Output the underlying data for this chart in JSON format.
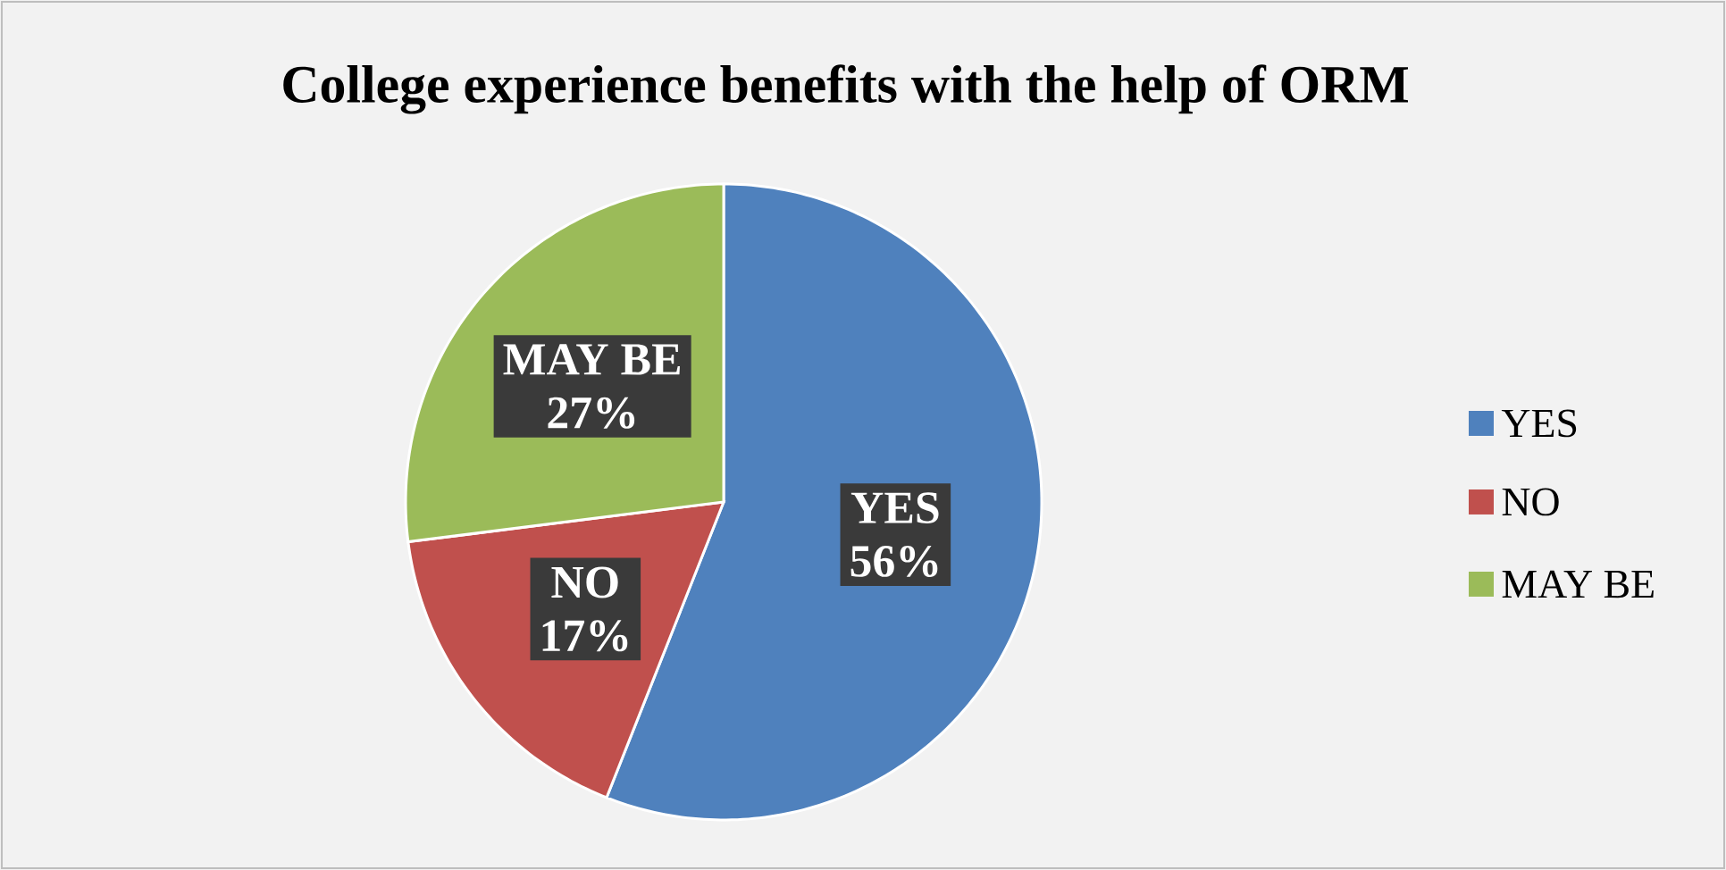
{
  "chart_data": {
    "type": "pie",
    "title": "College experience benefits with the help of ORM",
    "categories": [
      "YES",
      "NO",
      "MAY BE"
    ],
    "values": [
      56,
      17,
      27
    ],
    "colors": [
      "#4f81bd",
      "#c0504d",
      "#9bbb59"
    ],
    "value_labels": [
      "56%",
      "17%",
      "27%"
    ],
    "legend": "right"
  }
}
